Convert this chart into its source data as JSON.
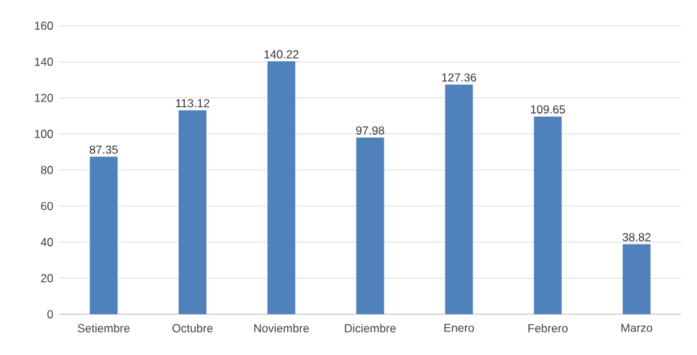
{
  "chart_data": {
    "type": "bar",
    "categories": [
      "Setiembre",
      "Octubre",
      "Noviembre",
      "Diciembre",
      "Enero",
      "Febrero",
      "Marzo"
    ],
    "values": [
      87.35,
      113.12,
      140.22,
      97.98,
      127.36,
      109.65,
      38.82
    ],
    "color": "#4f81bd",
    "ylim": [
      0,
      160
    ],
    "yticks": [
      0,
      20,
      40,
      60,
      80,
      100,
      120,
      140,
      160
    ],
    "grid": "y",
    "data_labels": true
  }
}
